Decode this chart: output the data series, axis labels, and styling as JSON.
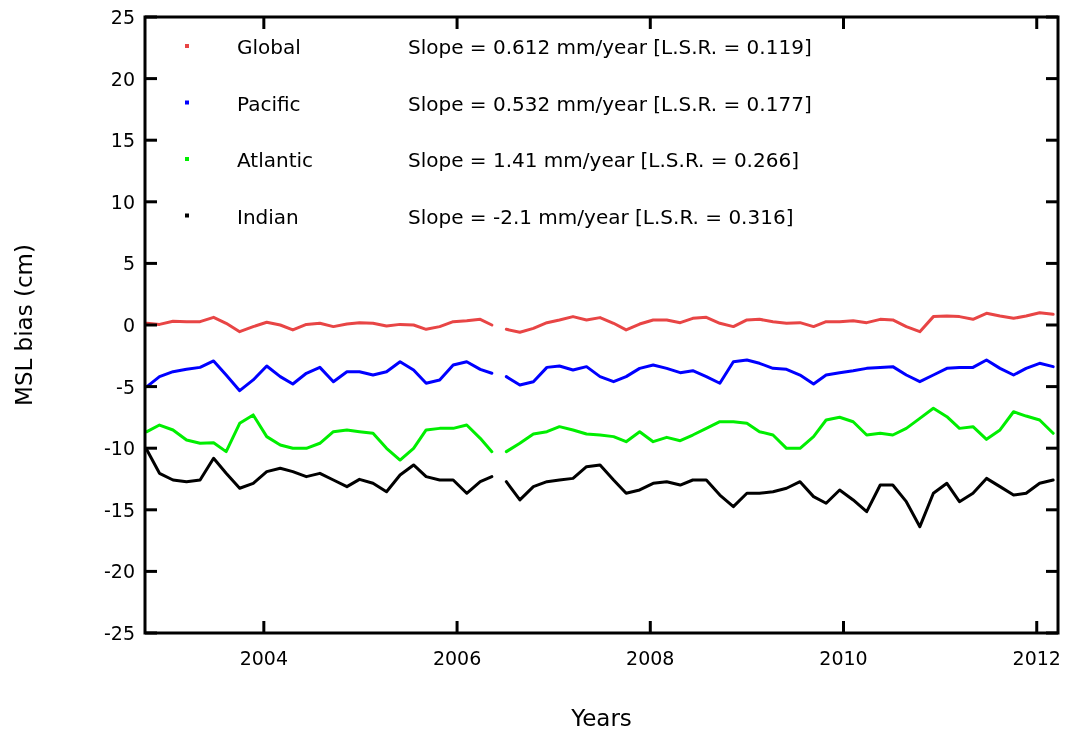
{
  "chart_data": {
    "type": "line",
    "xlabel": "Years",
    "ylabel": "MSL bias (cm)",
    "x": [
      2002.79,
      2002.92,
      2003.06,
      2003.2,
      2003.34,
      2003.48,
      2003.61,
      2003.75,
      2003.89,
      2004.03,
      2004.17,
      2004.3,
      2004.44,
      2004.58,
      2004.72,
      2004.86,
      2004.99,
      2005.13,
      2005.27,
      2005.41,
      2005.55,
      2005.68,
      2005.82,
      2005.96,
      2006.1,
      2006.24,
      2006.36,
      2006.43,
      2006.51,
      2006.65,
      2006.79,
      2006.93,
      2007.06,
      2007.2,
      2007.34,
      2007.48,
      2007.62,
      2007.75,
      2007.89,
      2008.03,
      2008.17,
      2008.31,
      2008.44,
      2008.58,
      2008.72,
      2008.86,
      2009.0,
      2009.13,
      2009.27,
      2009.41,
      2009.55,
      2009.69,
      2009.82,
      2009.96,
      2010.1,
      2010.24,
      2010.38,
      2010.51,
      2010.65,
      2010.79,
      2010.93,
      2011.07,
      2011.2,
      2011.34,
      2011.48,
      2011.62,
      2011.76,
      2011.89,
      2012.03,
      2012.17
    ],
    "series": [
      {
        "name": "Global",
        "color": "#e84545",
        "values": [
          0.14,
          0.05,
          0.3,
          0.27,
          0.27,
          0.62,
          0.14,
          -0.54,
          -0.13,
          0.22,
          0.0,
          -0.4,
          0.05,
          0.14,
          -0.13,
          0.08,
          0.19,
          0.14,
          -0.08,
          0.05,
          0.0,
          -0.35,
          -0.13,
          0.27,
          0.35,
          0.46,
          0.0,
          null,
          -0.35,
          -0.59,
          -0.27,
          0.19,
          0.41,
          0.68,
          0.41,
          0.6,
          0.14,
          -0.4,
          0.08,
          0.41,
          0.41,
          0.19,
          0.54,
          0.62,
          0.14,
          -0.13,
          0.41,
          0.46,
          0.27,
          0.14,
          0.19,
          -0.13,
          0.27,
          0.27,
          0.35,
          0.19,
          0.46,
          0.41,
          -0.13,
          -0.54,
          0.68,
          0.73,
          0.68,
          0.46,
          0.95,
          0.73,
          0.54,
          0.73,
          1.0,
          0.87
        ]
      },
      {
        "name": "Pacific",
        "color": "#0000ff",
        "values": [
          -5.0,
          -4.19,
          -3.79,
          -3.6,
          -3.44,
          -2.92,
          -4.06,
          -5.33,
          -4.46,
          -3.33,
          -4.19,
          -4.79,
          -3.92,
          -3.44,
          -4.6,
          -3.79,
          -3.79,
          -4.06,
          -3.79,
          -2.98,
          -3.65,
          -4.73,
          -4.46,
          -3.25,
          -2.98,
          -3.6,
          -3.92,
          null,
          -4.19,
          -4.87,
          -4.6,
          -3.44,
          -3.33,
          -3.65,
          -3.38,
          -4.19,
          -4.6,
          -4.19,
          -3.52,
          -3.25,
          -3.52,
          -3.87,
          -3.71,
          -4.19,
          -4.73,
          -2.98,
          -2.84,
          -3.11,
          -3.52,
          -3.6,
          -4.06,
          -4.79,
          -4.06,
          -3.87,
          -3.71,
          -3.52,
          -3.44,
          -3.38,
          -4.06,
          -4.6,
          -4.06,
          -3.52,
          -3.44,
          -3.44,
          -2.84,
          -3.52,
          -4.06,
          -3.52,
          -3.11,
          -3.38
        ]
      },
      {
        "name": "Atlantic",
        "color": "#00ee00",
        "values": [
          -8.66,
          -8.12,
          -8.52,
          -9.33,
          -9.6,
          -9.55,
          -10.28,
          -7.98,
          -7.3,
          -9.06,
          -9.74,
          -10.01,
          -10.01,
          -9.6,
          -8.66,
          -8.52,
          -8.66,
          -8.79,
          -10.01,
          -10.96,
          -10.01,
          -8.52,
          -8.39,
          -8.39,
          -8.12,
          -9.2,
          -10.28,
          null,
          -10.28,
          -9.6,
          -8.85,
          -8.66,
          -8.25,
          -8.52,
          -8.85,
          -8.93,
          -9.06,
          -9.47,
          -8.66,
          -9.47,
          -9.12,
          -9.39,
          -8.93,
          -8.39,
          -7.85,
          -7.85,
          -7.98,
          -8.66,
          -8.93,
          -10.01,
          -10.01,
          -9.06,
          -7.71,
          -7.49,
          -7.85,
          -8.93,
          -8.79,
          -8.93,
          -8.39,
          -7.58,
          -6.76,
          -7.44,
          -8.39,
          -8.25,
          -9.28,
          -8.52,
          -7.04,
          -7.39,
          -7.71,
          -8.79
        ]
      },
      {
        "name": "Indian",
        "color": "#000000",
        "values": [
          -10.15,
          -12.04,
          -12.58,
          -12.72,
          -12.58,
          -10.82,
          -12.04,
          -13.25,
          -12.85,
          -11.9,
          -11.63,
          -11.9,
          -12.31,
          -12.04,
          -12.58,
          -13.12,
          -12.53,
          -12.85,
          -13.53,
          -12.18,
          -11.36,
          -12.31,
          -12.58,
          -12.58,
          -13.66,
          -12.72,
          -12.31,
          null,
          -12.72,
          -14.2,
          -13.12,
          -12.72,
          -12.58,
          -12.45,
          -11.5,
          -11.36,
          -12.58,
          -13.66,
          -13.39,
          -12.85,
          -12.72,
          -12.99,
          -12.58,
          -12.58,
          -13.8,
          -14.74,
          -13.66,
          -13.66,
          -13.53,
          -13.25,
          -12.72,
          -13.93,
          -14.47,
          -13.39,
          -14.2,
          -15.15,
          -12.99,
          -12.99,
          -14.34,
          -16.37,
          -13.66,
          -12.85,
          -14.34,
          -13.66,
          -12.45,
          -13.12,
          -13.8,
          -13.66,
          -12.85,
          -12.58
        ]
      }
    ],
    "annotations": [
      "Slope = 0.612 mm/year [L.S.R. = 0.119]",
      "Slope = 0.532 mm/year [L.S.R. = 0.177]",
      "Slope = 1.41 mm/year [L.S.R. = 0.266]",
      "Slope = -2.1 mm/year [L.S.R. = 0.316]"
    ],
    "xlim": [
      2002.77,
      2012.22
    ],
    "xticks": [
      2004,
      2006,
      2008,
      2010,
      2012
    ],
    "ylim": [
      -25,
      25
    ],
    "yticks": [
      -25,
      -20,
      -15,
      -10,
      -5,
      0,
      5,
      10,
      15,
      20,
      25
    ],
    "grid": false,
    "legend": "top left",
    "marker": "none",
    "line_style": "solid"
  }
}
